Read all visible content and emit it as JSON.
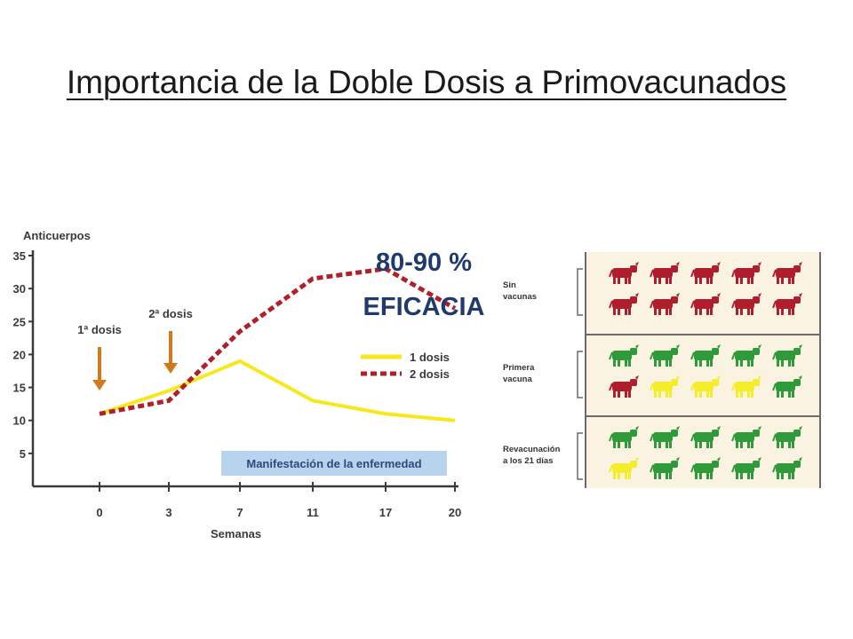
{
  "title": "Importancia de la Doble Dosis a Primovacunados",
  "callout": {
    "line1": "80-90 %",
    "line2": "EFICACIA"
  },
  "chart_data": {
    "type": "line",
    "ylabel": "Anticuerpos",
    "xlabel": "Semanas",
    "x": [
      0,
      3,
      7,
      11,
      17,
      20
    ],
    "x_ticks": [
      "0",
      "3",
      "7",
      "11",
      "17",
      "20"
    ],
    "y_ticks": [
      5,
      10,
      15,
      20,
      25,
      30,
      35
    ],
    "ylim": [
      0,
      35
    ],
    "series": [
      {
        "name": "1 dosis",
        "color": "#f7e81c",
        "style": "solid",
        "points": [
          [
            0,
            11
          ],
          [
            3,
            14.5
          ],
          [
            7,
            19
          ],
          [
            11,
            13
          ],
          [
            17,
            11
          ],
          [
            20,
            10
          ]
        ]
      },
      {
        "name": "2 dosis",
        "color": "#b0202a",
        "style": "dashed",
        "points": [
          [
            0,
            11
          ],
          [
            3,
            13
          ],
          [
            7,
            23.5
          ],
          [
            11,
            31.5
          ],
          [
            17,
            33
          ],
          [
            20,
            27
          ]
        ]
      }
    ],
    "annotations": [
      {
        "label": "1ª dosis",
        "x": 0,
        "arrow_color": "#d07a1e"
      },
      {
        "label": "2ª dosis",
        "x": 3,
        "arrow_color": "#d07a1e"
      }
    ],
    "band_label": "Manifestación de la enfermedad",
    "band_color": "#b7d3ee",
    "legend_position": "right"
  },
  "panel": {
    "background": "#fbf3e2",
    "healthy_color": "#2f9a3a",
    "sick_color": "#b01e2e",
    "mild_color": "#f5ec2a",
    "rows": [
      {
        "label_lines": [
          "Sin",
          "vacunas"
        ],
        "cows": [
          [
            "sick",
            "sick",
            "sick",
            "sick",
            "sick"
          ],
          [
            "sick",
            "sick",
            "sick",
            "sick",
            "sick"
          ]
        ]
      },
      {
        "label_lines": [
          "Primera",
          "vacuna"
        ],
        "cows": [
          [
            "healthy",
            "healthy",
            "healthy",
            "healthy",
            "healthy"
          ],
          [
            "sick",
            "mild",
            "mild",
            "mild",
            "healthy"
          ]
        ]
      },
      {
        "label_lines": [
          "Revacunación",
          "a los 21 días"
        ],
        "cows": [
          [
            "healthy",
            "healthy",
            "healthy",
            "healthy",
            "healthy"
          ],
          [
            "mild",
            "healthy",
            "healthy",
            "healthy",
            "healthy"
          ]
        ]
      }
    ]
  }
}
